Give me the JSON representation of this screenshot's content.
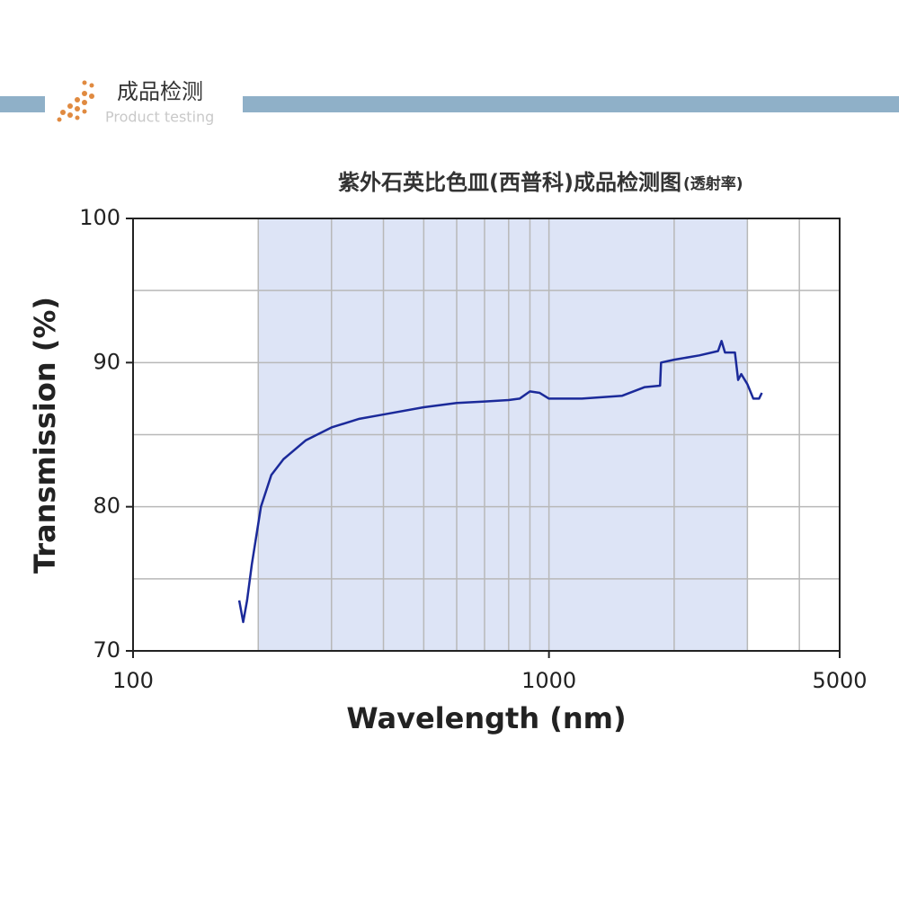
{
  "header": {
    "title": "成品检测",
    "subtitle": "Product testing"
  },
  "chart_data": {
    "type": "line",
    "title": "紫外石英比色皿(西普科)成品检测图",
    "subtitle": "(透射率)",
    "x_label": "Wavelength (nm)",
    "y_label": "Transmission (%)",
    "xscale": "log",
    "xlim": [
      100,
      5000
    ],
    "xticks": [
      100,
      1000,
      5000
    ],
    "ylim": [
      70,
      100
    ],
    "yticks": [
      70,
      80,
      90,
      100
    ],
    "xgrid": [
      200,
      300,
      400,
      500,
      600,
      700,
      800,
      900,
      1000,
      2000,
      3000,
      4000
    ],
    "ygrid": [
      75,
      80,
      85,
      90,
      95
    ],
    "shade": [
      200,
      3000
    ],
    "shade_color": "#dde4f6",
    "x": [
      180,
      184,
      188,
      193,
      203,
      215,
      230,
      260,
      300,
      350,
      400,
      500,
      600,
      700,
      800,
      850,
      900,
      950,
      1000,
      1200,
      1500,
      1700,
      1850,
      1860,
      2000,
      2300,
      2550,
      2600,
      2650,
      2800,
      2850,
      2900,
      3000,
      3100,
      3200,
      3250
    ],
    "series": [
      {
        "name": "Transmission",
        "color": "#1b2a9a",
        "values": [
          73.5,
          72,
          73.5,
          76,
          80,
          82.2,
          83.3,
          84.6,
          85.5,
          86.1,
          86.4,
          86.9,
          87.2,
          87.3,
          87.4,
          87.5,
          88,
          87.9,
          87.5,
          87.5,
          87.7,
          88.3,
          88.4,
          90,
          90.2,
          90.5,
          90.8,
          91.5,
          90.7,
          90.7,
          88.8,
          89.2,
          88.5,
          87.5,
          87.5,
          87.9
        ]
      }
    ]
  }
}
